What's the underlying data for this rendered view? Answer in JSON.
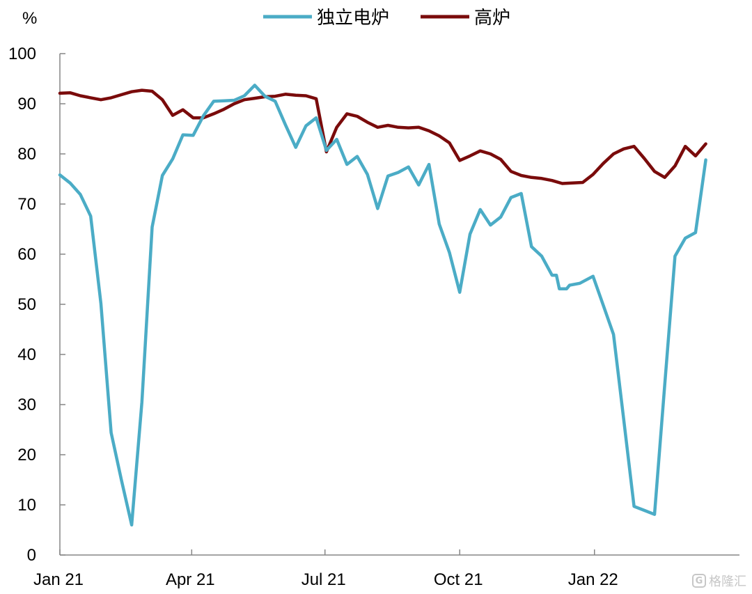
{
  "chart_data": {
    "type": "line",
    "unit_label": "%",
    "ylim": [
      0,
      100
    ],
    "yticks": [
      0,
      10,
      20,
      30,
      40,
      50,
      60,
      70,
      80,
      90,
      100
    ],
    "xticks": [
      {
        "label": "Jan 21",
        "x": "2021-01-01"
      },
      {
        "label": "Apr 21",
        "x": "2021-04-01"
      },
      {
        "label": "Jul 21",
        "x": "2021-07-01"
      },
      {
        "label": "Oct 21",
        "x": "2021-10-01"
      },
      {
        "label": "Jan 22",
        "x": "2022-01-01"
      }
    ],
    "xlim": [
      "2021-01-01",
      "2022-04-10"
    ],
    "grid": false,
    "legend_position": "top-center",
    "series": [
      {
        "name": "独立电炉",
        "color": "#4bacc6",
        "points": [
          [
            "2021-01-01",
            75.8
          ],
          [
            "2021-01-08",
            74.2
          ],
          [
            "2021-01-15",
            71.9
          ],
          [
            "2021-01-22",
            67.6
          ],
          [
            "2021-01-29",
            50.2
          ],
          [
            "2021-02-05",
            24.4
          ],
          [
            "2021-02-12",
            15.0
          ],
          [
            "2021-02-19",
            6.0
          ],
          [
            "2021-02-26",
            30.5
          ],
          [
            "2021-03-05",
            65.4
          ],
          [
            "2021-03-12",
            75.7
          ],
          [
            "2021-03-19",
            79.0
          ],
          [
            "2021-03-26",
            83.8
          ],
          [
            "2021-04-02",
            83.7
          ],
          [
            "2021-04-09",
            87.6
          ],
          [
            "2021-04-16",
            90.5
          ],
          [
            "2021-04-23",
            90.6
          ],
          [
            "2021-04-30",
            90.7
          ],
          [
            "2021-05-07",
            91.6
          ],
          [
            "2021-05-14",
            93.7
          ],
          [
            "2021-05-21",
            91.5
          ],
          [
            "2021-05-28",
            90.5
          ],
          [
            "2021-06-04",
            85.8
          ],
          [
            "2021-06-11",
            81.3
          ],
          [
            "2021-06-18",
            85.6
          ],
          [
            "2021-06-25",
            87.2
          ],
          [
            "2021-07-02",
            80.7
          ],
          [
            "2021-07-09",
            82.9
          ],
          [
            "2021-07-16",
            77.9
          ],
          [
            "2021-07-23",
            79.5
          ],
          [
            "2021-07-30",
            75.9
          ],
          [
            "2021-08-06",
            69.1
          ],
          [
            "2021-08-13",
            75.6
          ],
          [
            "2021-08-20",
            76.3
          ],
          [
            "2021-08-27",
            77.4
          ],
          [
            "2021-09-03",
            73.8
          ],
          [
            "2021-09-10",
            77.9
          ],
          [
            "2021-09-17",
            66.0
          ],
          [
            "2021-09-24",
            60.3
          ],
          [
            "2021-10-01",
            52.4
          ],
          [
            "2021-10-08",
            64.0
          ],
          [
            "2021-10-15",
            68.9
          ],
          [
            "2021-10-22",
            65.8
          ],
          [
            "2021-10-29",
            67.4
          ],
          [
            "2021-11-05",
            71.3
          ],
          [
            "2021-11-12",
            72.1
          ],
          [
            "2021-11-19",
            61.5
          ],
          [
            "2021-11-26",
            59.6
          ],
          [
            "2021-12-03",
            55.8
          ],
          [
            "2021-12-06",
            55.8
          ],
          [
            "2021-12-08",
            53.1
          ],
          [
            "2021-12-13",
            53.1
          ],
          [
            "2021-12-15",
            53.8
          ],
          [
            "2021-12-22",
            54.2
          ],
          [
            "2021-12-31",
            55.6
          ],
          [
            "2022-01-07",
            49.8
          ],
          [
            "2022-01-14",
            44.0
          ],
          [
            "2022-01-21",
            27.0
          ],
          [
            "2022-01-28",
            9.7
          ],
          [
            "2022-02-04",
            8.9
          ],
          [
            "2022-02-11",
            8.1
          ],
          [
            "2022-02-18",
            34.0
          ],
          [
            "2022-02-25",
            59.6
          ],
          [
            "2022-03-04",
            63.2
          ],
          [
            "2022-03-11",
            64.3
          ],
          [
            "2022-03-18",
            78.8
          ]
        ]
      },
      {
        "name": "高炉",
        "color": "#7a0b0b",
        "points": [
          [
            "2021-01-01",
            92.1
          ],
          [
            "2021-01-08",
            92.2
          ],
          [
            "2021-01-15",
            91.6
          ],
          [
            "2021-01-22",
            91.2
          ],
          [
            "2021-01-29",
            90.8
          ],
          [
            "2021-02-05",
            91.2
          ],
          [
            "2021-02-12",
            91.8
          ],
          [
            "2021-02-19",
            92.4
          ],
          [
            "2021-02-26",
            92.7
          ],
          [
            "2021-03-05",
            92.5
          ],
          [
            "2021-03-12",
            90.8
          ],
          [
            "2021-03-19",
            87.7
          ],
          [
            "2021-03-26",
            88.8
          ],
          [
            "2021-04-02",
            87.2
          ],
          [
            "2021-04-09",
            87.2
          ],
          [
            "2021-04-16",
            88.0
          ],
          [
            "2021-04-23",
            88.9
          ],
          [
            "2021-04-30",
            90.0
          ],
          [
            "2021-05-07",
            90.8
          ],
          [
            "2021-05-14",
            91.1
          ],
          [
            "2021-05-21",
            91.4
          ],
          [
            "2021-05-28",
            91.5
          ],
          [
            "2021-06-04",
            91.9
          ],
          [
            "2021-06-11",
            91.7
          ],
          [
            "2021-06-18",
            91.6
          ],
          [
            "2021-06-25",
            91.0
          ],
          [
            "2021-07-02",
            80.4
          ],
          [
            "2021-07-09",
            85.3
          ],
          [
            "2021-07-16",
            88.0
          ],
          [
            "2021-07-23",
            87.5
          ],
          [
            "2021-07-30",
            86.3
          ],
          [
            "2021-08-06",
            85.3
          ],
          [
            "2021-08-13",
            85.7
          ],
          [
            "2021-08-20",
            85.3
          ],
          [
            "2021-08-27",
            85.2
          ],
          [
            "2021-09-03",
            85.3
          ],
          [
            "2021-09-10",
            84.6
          ],
          [
            "2021-09-17",
            83.6
          ],
          [
            "2021-09-24",
            82.2
          ],
          [
            "2021-10-01",
            78.7
          ],
          [
            "2021-10-08",
            79.6
          ],
          [
            "2021-10-15",
            80.6
          ],
          [
            "2021-10-22",
            80.0
          ],
          [
            "2021-10-29",
            78.9
          ],
          [
            "2021-11-05",
            76.5
          ],
          [
            "2021-11-12",
            75.7
          ],
          [
            "2021-11-19",
            75.3
          ],
          [
            "2021-11-26",
            75.1
          ],
          [
            "2021-12-03",
            74.7
          ],
          [
            "2021-12-10",
            74.1
          ],
          [
            "2021-12-17",
            74.2
          ],
          [
            "2021-12-24",
            74.3
          ],
          [
            "2021-12-31",
            75.9
          ],
          [
            "2022-01-07",
            78.1
          ],
          [
            "2022-01-14",
            80.0
          ],
          [
            "2022-01-21",
            81.0
          ],
          [
            "2022-01-28",
            81.5
          ],
          [
            "2022-02-04",
            79.1
          ],
          [
            "2022-02-11",
            76.5
          ],
          [
            "2022-02-18",
            75.3
          ],
          [
            "2022-02-25",
            77.6
          ],
          [
            "2022-03-04",
            81.5
          ],
          [
            "2022-03-11",
            79.6
          ],
          [
            "2022-03-18",
            82.0
          ]
        ]
      }
    ]
  },
  "watermark": {
    "logo_glyph": "G",
    "text": "格隆汇"
  }
}
